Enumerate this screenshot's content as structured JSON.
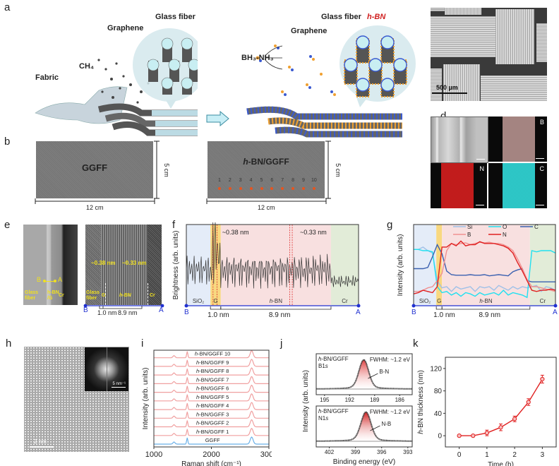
{
  "panels": {
    "a": {
      "label": "a",
      "left": {
        "fabric": "Fabric",
        "gas": "CH₄",
        "graphene": "Graphene",
        "glass_fiber": "Glass fiber"
      },
      "right": {
        "precursor": "BH₃-NH₃",
        "graphene": "Graphene",
        "glass_fiber": "Glass fiber",
        "hbn": "h-BN"
      },
      "arrow": "arrow-right-icon"
    },
    "b": {
      "label": "b",
      "left": {
        "title": "GGFF",
        "width": "12 cm",
        "height": "5 cm"
      },
      "right": {
        "title": "h-BN/GGFF",
        "width": "12 cm",
        "height": "5 cm",
        "points": [
          "1",
          "2",
          "3",
          "4",
          "5",
          "6",
          "7",
          "8",
          "9",
          "10"
        ],
        "point_color": "#e8541e"
      }
    },
    "c": {
      "label": "c",
      "scale": "500 µm"
    },
    "d": {
      "label": "d",
      "maps": [
        {
          "el": "B",
          "color": "#d8b4b0"
        },
        {
          "el": "N",
          "color": "#c01818"
        },
        {
          "el": "C",
          "color": "#20c8c8"
        }
      ]
    },
    "e": {
      "label": "e",
      "left": {
        "B": "B",
        "A": "A",
        "glass_fiber": "Glass fiber",
        "hbn_g": "h-BN /G",
        "cr": "Cr",
        "scale": "50 nm"
      },
      "right": {
        "d1": "~0.38 nm",
        "d2": "~0.33 nm",
        "glass_fiber": "Glass fiber",
        "g": "G",
        "hbn": "h-BN",
        "cr": "Cr",
        "scale": "2 nm"
      },
      "axis": {
        "B": "B",
        "A": "A",
        "w1": "1.0 nm",
        "w2": "8.9 nm"
      }
    },
    "h": {
      "label": "h",
      "scale": "2 nm",
      "inset_scale": "5 nm⁻¹"
    }
  },
  "chart_data": [
    {
      "id": "f",
      "type": "line",
      "label": "f",
      "ylabel": "Brightness (arb. units)",
      "regions": [
        {
          "name": "SiO₂",
          "from": 0,
          "to": 0.14,
          "color": "#e4ecf8"
        },
        {
          "name": "G",
          "from": 0.14,
          "to": 0.2,
          "color": "#f8d880"
        },
        {
          "name": "h-BN",
          "from": 0.2,
          "to": 0.84,
          "color": "#f8e0e0"
        },
        {
          "name": "Cr",
          "from": 0.84,
          "to": 1.0,
          "color": "#e2ecd8"
        }
      ],
      "annotations": [
        "~0.38 nm",
        "~0.33 nm"
      ],
      "axis": {
        "B": "B",
        "A": "A",
        "w1": "1.0 nm",
        "w2": "8.9 nm"
      }
    },
    {
      "id": "g",
      "type": "line",
      "label": "g",
      "ylabel": "Intensity (arb. units)",
      "legend": [
        "Si",
        "O",
        "C",
        "B",
        "N"
      ],
      "legend_position": "top-right",
      "regions": [
        {
          "name": "SiO₂",
          "from": 0,
          "to": 0.16,
          "color": "#e4ecf8"
        },
        {
          "name": "G",
          "from": 0.16,
          "to": 0.2,
          "color": "#f8d880"
        },
        {
          "name": "h-BN",
          "from": 0.2,
          "to": 0.82,
          "color": "#f8e0e0"
        },
        {
          "name": "Cr",
          "from": 0.82,
          "to": 1.0,
          "color": "#e2ecd8"
        }
      ],
      "series": [
        {
          "name": "Si",
          "color": "#9ec0e8",
          "values": [
            0.82,
            0.82,
            0.86,
            0.8,
            0.76,
            0.3,
            0.18,
            0.2,
            0.12,
            0.2,
            0.16,
            0.18,
            0.2,
            0.12,
            0.2,
            0.18,
            0.2,
            0.14,
            0.22,
            0.18,
            0.14,
            0.2,
            0.16,
            0.2,
            0.18,
            0.2,
            0.22,
            0.12,
            0.2,
            0.18,
            0.14
          ]
        },
        {
          "name": "O",
          "color": "#20e0f0",
          "values": [
            0.82,
            0.82,
            0.8,
            0.8,
            0.78,
            0.2,
            0.1,
            0.12,
            0.06,
            0.1,
            0.04,
            0.1,
            0.08,
            0.04,
            0.1,
            0.06,
            0.08,
            0.1,
            0.06,
            0.14,
            0.06,
            0.1,
            0.08,
            0.06,
            0.02,
            0.8,
            0.78,
            0.8,
            0.8,
            0.8,
            0.76
          ]
        },
        {
          "name": "C",
          "color": "#3a60b0",
          "values": [
            0.5,
            0.5,
            0.5,
            0.52,
            0.7,
            0.9,
            0.75,
            0.46,
            0.4,
            0.39,
            0.39,
            0.39,
            0.4,
            0.39,
            0.39,
            0.4,
            0.38,
            0.39,
            0.4,
            0.39,
            0.38,
            0.45,
            0.48,
            0.5,
            0.3,
            0.28,
            0.28,
            0.28,
            0.28,
            0.28,
            0.28
          ]
        },
        {
          "name": "B",
          "color": "#f09090",
          "values": [
            0.12,
            0.12,
            0.14,
            0.18,
            0.2,
            0.3,
            0.42,
            0.8,
            0.92,
            0.9,
            0.92,
            0.93,
            0.9,
            0.92,
            0.94,
            0.93,
            0.94,
            0.92,
            0.92,
            0.9,
            0.86,
            0.8,
            0.66,
            0.5,
            0.32,
            0.2,
            0.2,
            0.18,
            0.16,
            0.14,
            0.12
          ]
        },
        {
          "name": "N",
          "color": "#e02020",
          "values": [
            0.08,
            0.1,
            0.14,
            0.12,
            0.1,
            0.2,
            0.86,
            0.86,
            0.92,
            0.88,
            0.96,
            0.88,
            0.9,
            0.9,
            0.95,
            0.92,
            0.92,
            0.92,
            0.9,
            0.88,
            0.84,
            0.76,
            0.6,
            0.46,
            0.3,
            0.14,
            0.12,
            0.14,
            0.14,
            0.16,
            0.14
          ]
        }
      ],
      "axis": {
        "B": "B",
        "A": "A",
        "w1": "1.0 nm",
        "w2": "8.9 nm"
      }
    },
    {
      "id": "i",
      "type": "line",
      "label": "i",
      "xlabel": "Raman shift (cm⁻¹)",
      "ylabel": "Intensity (arb. units)",
      "xlim": [
        1000,
        3000
      ],
      "xticks": [
        "1000",
        "2000",
        "3000"
      ],
      "peaks": [
        1350,
        1580,
        2700
      ],
      "series": [
        {
          "name": "GGFF",
          "color": "#6ab0e8"
        },
        {
          "name": "h-BN/GGFF 1",
          "color": "#f0a0a0"
        },
        {
          "name": "h-BN/GGFF 2",
          "color": "#f0a0a0"
        },
        {
          "name": "h-BN/GGFF 3",
          "color": "#f0a0a0"
        },
        {
          "name": "h-BN/GGFF 4",
          "color": "#f0a0a0"
        },
        {
          "name": "h-BN/GGFF 5",
          "color": "#f0a0a0"
        },
        {
          "name": "h-BN/GGFF 6",
          "color": "#f0a0a0"
        },
        {
          "name": "h-BN/GGFF 7",
          "color": "#f0a0a0"
        },
        {
          "name": "h-BN/GGFF 8",
          "color": "#f0a0a0"
        },
        {
          "name": "h-BN/GGFF 9",
          "color": "#f0a0a0"
        },
        {
          "name": "h-BN/GGFF 10",
          "color": "#f0a0a0"
        }
      ]
    },
    {
      "id": "j",
      "type": "line",
      "label": "j",
      "xlabel": "Binding energy (eV)",
      "ylabel": "Intensity (arb. units)",
      "subplots": [
        {
          "sample": "h-BN/GGFF",
          "core": "B1s",
          "fwhm": "FWHM: ~1.2 eV",
          "peak_label": "B-N",
          "xlim": [
            196,
            184.5
          ],
          "xticks": [
            "195",
            "192",
            "189",
            "186"
          ],
          "peak": 190.3,
          "width": 1.2
        },
        {
          "sample": "h-BN/GGFF",
          "core": "N1s",
          "fwhm": "FWHM: ~1.2 eV",
          "peak_label": "N-B",
          "xlim": [
            403.5,
            392.5
          ],
          "xticks": [
            "402",
            "399",
            "396",
            "393"
          ],
          "peak": 397.8,
          "width": 1.2
        }
      ]
    },
    {
      "id": "k",
      "type": "line",
      "label": "k",
      "xlabel": "Time (h)",
      "ylabel": "h-BN thickness (nm)",
      "xlim": [
        -0.5,
        3.5
      ],
      "ylim": [
        -20,
        140
      ],
      "xticks": [
        0,
        1,
        2,
        3
      ],
      "yticks": [
        0,
        40,
        80,
        120
      ],
      "color": "#e02020",
      "x": [
        0,
        0.5,
        1,
        1.5,
        2,
        2.5,
        3
      ],
      "y": [
        0,
        0,
        5,
        15,
        30,
        60,
        101
      ],
      "err": [
        1,
        1,
        5,
        6,
        5,
        6,
        7
      ]
    }
  ]
}
